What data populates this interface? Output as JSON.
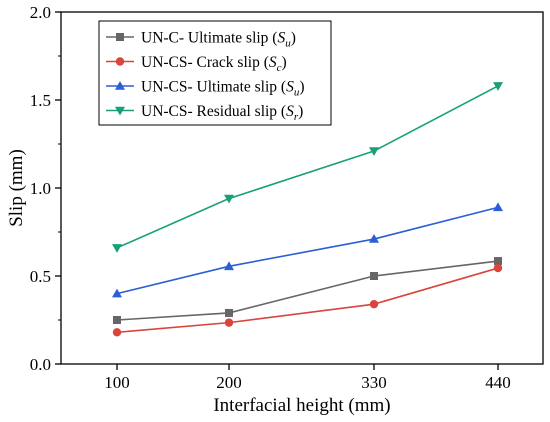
{
  "chart_data": {
    "type": "line",
    "title": "",
    "xlabel": "Interfacial height (mm)",
    "ylabel": "Slip (mm)",
    "categories": [
      "100",
      "200",
      "330",
      "440"
    ],
    "ylim": [
      0,
      2.0
    ],
    "yticks": [
      "0.0",
      "0.5",
      "1.0",
      "1.5",
      "2.0"
    ],
    "grid": false,
    "legend_position": "top-left",
    "series": [
      {
        "name": "UN-C- Ultimate slip",
        "symbol": "S",
        "subscript": "u",
        "marker": "square",
        "color": "#666666",
        "values": [
          0.25,
          0.29,
          0.5,
          0.585
        ]
      },
      {
        "name": "UN-CS- Crack slip",
        "symbol": "S",
        "subscript": "c",
        "marker": "circle",
        "color": "#d9443b",
        "values": [
          0.18,
          0.235,
          0.34,
          0.545
        ]
      },
      {
        "name": "UN-CS- Ultimate slip",
        "symbol": "S",
        "subscript": "u",
        "marker": "triangle-up",
        "color": "#2a5fd6",
        "values": [
          0.4,
          0.555,
          0.71,
          0.89
        ]
      },
      {
        "name": "UN-CS- Residual slip",
        "symbol": "S",
        "subscript": "r",
        "marker": "triangle-down",
        "color": "#1aa078",
        "values": [
          0.66,
          0.94,
          1.21,
          1.58
        ]
      }
    ]
  }
}
